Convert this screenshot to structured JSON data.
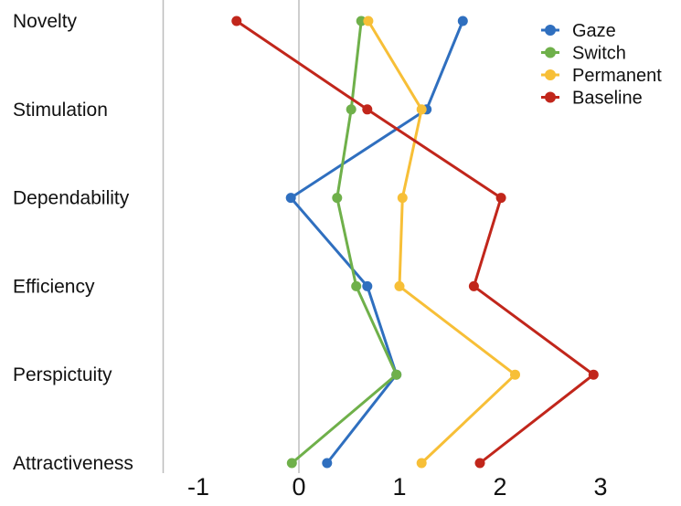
{
  "chart_data": {
    "type": "line",
    "orientation": "horizontal",
    "categories": [
      "Novelty",
      "Stimulation",
      "Dependability",
      "Efficiency",
      "Perspictuity",
      "Attractiveness"
    ],
    "x_ticks": [
      "-1",
      "0",
      "1",
      "2",
      "3"
    ],
    "xlim": [
      -1.35,
      3.05
    ],
    "grid": false,
    "legend_position": "top-right",
    "series": [
      {
        "name": "Gaze",
        "color": "#2f6fbf",
        "values": [
          1.63,
          1.27,
          -0.08,
          0.68,
          0.97,
          0.28
        ]
      },
      {
        "name": "Switch",
        "color": "#6fb04a",
        "values": [
          0.62,
          0.52,
          0.38,
          0.57,
          0.97,
          -0.07
        ]
      },
      {
        "name": "Permanent",
        "color": "#f7bf37",
        "values": [
          0.69,
          1.22,
          1.03,
          1.0,
          2.15,
          1.22
        ]
      },
      {
        "name": "Baseline",
        "color": "#c1261b",
        "values": [
          -0.62,
          0.68,
          2.01,
          1.74,
          2.93,
          1.8
        ]
      }
    ],
    "reference_lines": [
      -1.35,
      0
    ]
  }
}
